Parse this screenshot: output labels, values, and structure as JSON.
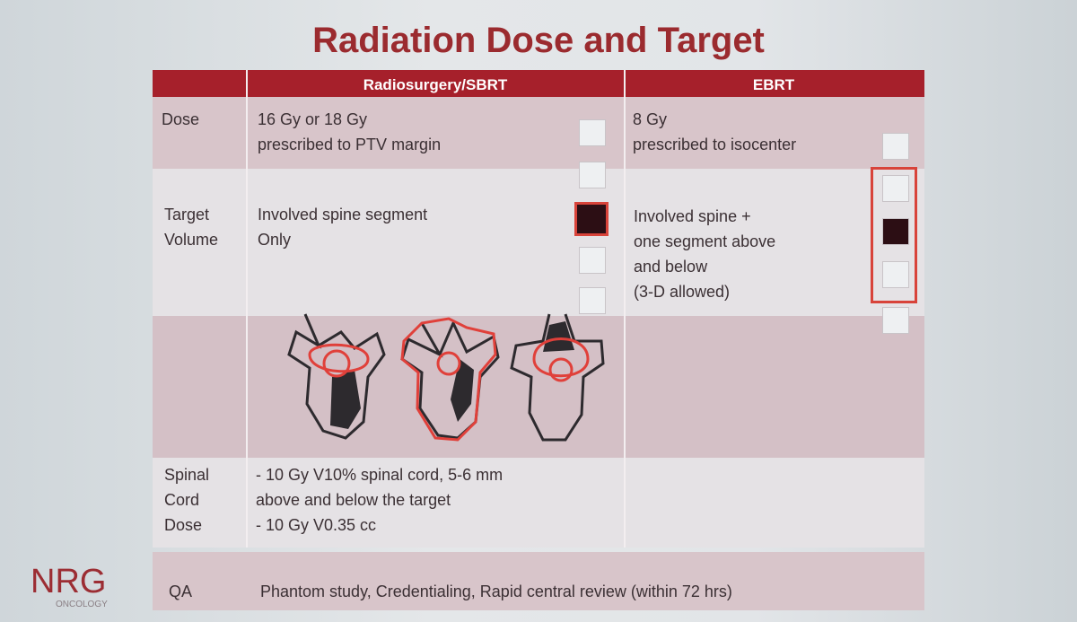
{
  "title": "Radiation Dose and Target",
  "table": {
    "columns": [
      "Radiosurgery/SBRT",
      "EBRT"
    ],
    "rows": [
      {
        "label": [
          "Dose"
        ],
        "sbrt": [
          "16 Gy or 18 Gy",
          "prescribed to PTV margin"
        ],
        "ebrt": [
          "8 Gy",
          "prescribed to isocenter"
        ]
      },
      {
        "label": [
          "Target",
          "Volume"
        ],
        "sbrt": [
          "Involved spine segment",
          "Only"
        ],
        "ebrt": [
          "Involved spine +",
          "one segment above",
          "and below",
          "(3-D allowed)"
        ]
      },
      {
        "label": [
          "Spinal",
          "Cord",
          "Dose"
        ],
        "sbrt": [
          "- 10 Gy V10% spinal cord, 5-6 mm",
          "above and below the target",
          "- 10 Gy V0.35 cc"
        ]
      },
      {
        "label": [
          "QA"
        ],
        "all": [
          "Phantom study, Credentialing, Rapid central review (within 72 hrs)"
        ]
      }
    ]
  },
  "logo": {
    "name": "NRG",
    "subtitle": "ONCOLOGY"
  }
}
